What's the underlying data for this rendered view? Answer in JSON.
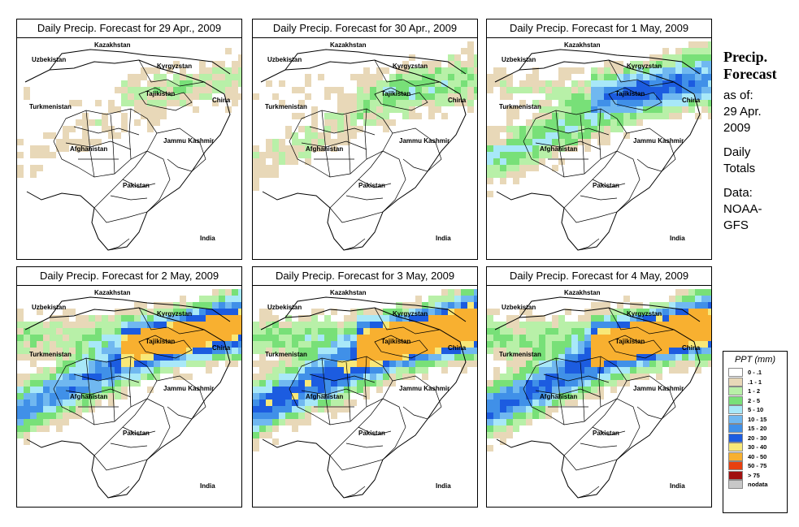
{
  "panels": [
    {
      "title": "Daily Precip. Forecast for  29 Apr., 2009",
      "intensity": 0.15
    },
    {
      "title": "Daily Precip. Forecast for  30 Apr., 2009",
      "intensity": 0.22
    },
    {
      "title": "Daily Precip. Forecast for  1 May, 2009",
      "intensity": 0.45
    },
    {
      "title": "Daily Precip. Forecast for  2 May, 2009",
      "intensity": 0.75
    },
    {
      "title": "Daily Precip. Forecast for  3 May, 2009",
      "intensity": 0.9
    },
    {
      "title": "Daily Precip. Forecast for  4 May, 2009",
      "intensity": 0.85
    }
  ],
  "map_labels": {
    "kazakhstan": "Kazakhstan",
    "uzbekistan": "Uzbekistan",
    "kyrgyzstan": "Kyrgyzstan",
    "tajikistan": "Tajikistan",
    "turkmenistan": "Turkmenistan",
    "china": "China",
    "afghanistan": "Afghanistan",
    "jammu_kashmir": "Jammu Kashmir",
    "pakistan": "Pakistan",
    "india": "India"
  },
  "side": {
    "title_line1": "Precip.",
    "title_line2": "Forecast",
    "asof_label": "as of:",
    "asof_date1": "29 Apr.",
    "asof_date2": "2009",
    "totals1": "Daily",
    "totals2": "Totals",
    "data1": "Data:",
    "data2": "NOAA-",
    "data3": "GFS"
  },
  "legend": {
    "title": "PPT (mm)",
    "items": [
      {
        "label": "0 - .1",
        "color": "#ffffff"
      },
      {
        "label": ".1 - 1",
        "color": "#e8d8b8"
      },
      {
        "label": "1 - 2",
        "color": "#b8f0a8"
      },
      {
        "label": "2 - 5",
        "color": "#78e078"
      },
      {
        "label": "5 - 10",
        "color": "#a8e8f8"
      },
      {
        "label": "10 - 15",
        "color": "#70b8f0"
      },
      {
        "label": "15 - 20",
        "color": "#4090e8"
      },
      {
        "label": "20 - 30",
        "color": "#1c5ce0"
      },
      {
        "label": "30 - 40",
        "color": "#f8e878"
      },
      {
        "label": "40 - 50",
        "color": "#f8b030"
      },
      {
        "label": "50 - 75",
        "color": "#e84010"
      },
      {
        "label": "> 75",
        "color": "#a01010"
      },
      {
        "label": "nodata",
        "color": "#c8c8c8"
      }
    ]
  }
}
